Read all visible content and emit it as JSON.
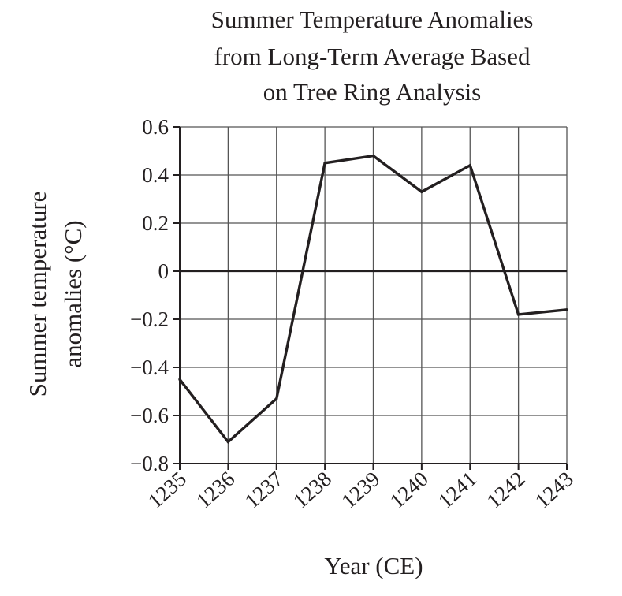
{
  "chart_data": {
    "type": "line",
    "title_lines": [
      "Summer Temperature Anomalies",
      "from Long-Term Average Based",
      "on Tree Ring Analysis"
    ],
    "xlabel": "Year (CE)",
    "ylabel_lines": [
      "Summer temperature",
      "anomalies (°C)"
    ],
    "categories": [
      "1235",
      "1236",
      "1237",
      "1238",
      "1239",
      "1240",
      "1241",
      "1242",
      "1243"
    ],
    "y_tick_labels": [
      "0.6",
      "0.4",
      "0.2",
      "0",
      "−0.2",
      "−0.4",
      "−0.6",
      "−0.8"
    ],
    "y_ticks": [
      0.6,
      0.4,
      0.2,
      0,
      -0.2,
      -0.4,
      -0.6,
      -0.8
    ],
    "ylim": [
      -0.8,
      0.6
    ],
    "grid": true,
    "series": [
      {
        "values": [
          -0.45,
          -0.71,
          -0.53,
          0.45,
          0.48,
          0.33,
          0.44,
          -0.18,
          -0.16
        ]
      }
    ]
  }
}
